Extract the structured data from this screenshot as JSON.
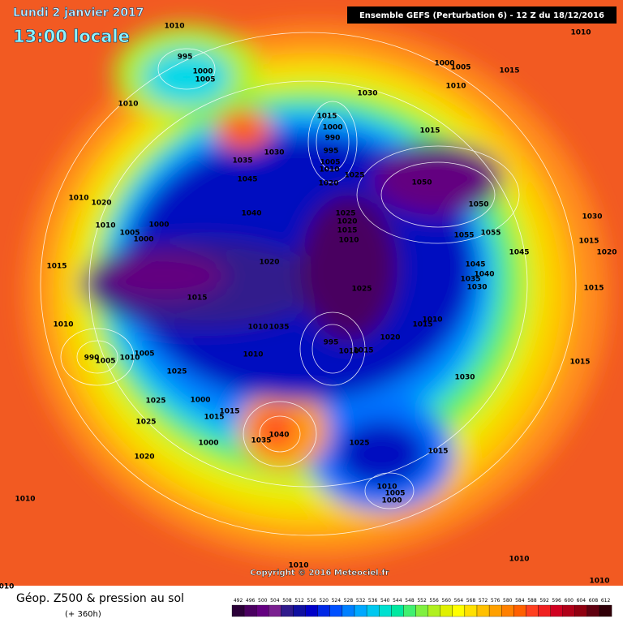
{
  "header": {
    "date": "Lundi 2 janvier 2017",
    "time": "13:00 locale",
    "model": "Ensemble GEFS  (Perturbation 6)  -  12 Z du 18/12/2016"
  },
  "map": {
    "copyright": "Copyright © 2016 Meteociel.fr",
    "pressure_labels": [
      "1010",
      "995",
      "1000",
      "1005",
      "1010",
      "1000",
      "1005",
      "1015",
      "1010",
      "1010",
      "1030",
      "1015",
      "1000",
      "990",
      "995",
      "1005",
      "1010",
      "1020",
      "1025",
      "1015",
      "1030",
      "1035",
      "1045",
      "1050",
      "1050",
      "1010",
      "1020",
      "1040",
      "1025",
      "1020",
      "1015",
      "1010",
      "1055",
      "1055",
      "1030",
      "1010",
      "1000",
      "1005",
      "1000",
      "1015",
      "1020",
      "1015",
      "1020",
      "1045",
      "1045",
      "1040",
      "1035",
      "1030",
      "1015",
      "1015",
      "1025",
      "1010",
      "1015",
      "1010",
      "1010",
      "1035",
      "1020",
      "995",
      "990",
      "1005",
      "1010",
      "1005",
      "1010",
      "1010",
      "1015",
      "1015",
      "1025",
      "1030",
      "1025",
      "1000",
      "1015",
      "1015",
      "1025",
      "1040",
      "1035",
      "1000",
      "1025",
      "1015",
      "1020",
      "1010",
      "1010",
      "1005",
      "1000",
      "1010",
      "1010",
      "1010",
      "010"
    ]
  },
  "footer": {
    "title": "Géop. Z500 & pression au sol",
    "lead": "(+ 360h)"
  },
  "legend": {
    "values": [
      492,
      496,
      500,
      504,
      508,
      512,
      516,
      520,
      524,
      528,
      532,
      536,
      540,
      544,
      548,
      552,
      556,
      560,
      564,
      568,
      572,
      576,
      580,
      584,
      588,
      592,
      596,
      600,
      604,
      608,
      612
    ],
    "colors": [
      "#2b0038",
      "#4a0060",
      "#640080",
      "#7a2090",
      "#301a8c",
      "#1010a0",
      "#0000c8",
      "#0028e6",
      "#0050ff",
      "#0080ff",
      "#00a8ff",
      "#00c8f0",
      "#00e0d0",
      "#00e8a0",
      "#40f070",
      "#80f040",
      "#b0f020",
      "#e0f000",
      "#ffff00",
      "#ffe000",
      "#ffc000",
      "#ffa000",
      "#ff8000",
      "#ff6000",
      "#ff4020",
      "#f02020",
      "#d00020",
      "#b00018",
      "#900010",
      "#600010",
      "#300008"
    ]
  }
}
